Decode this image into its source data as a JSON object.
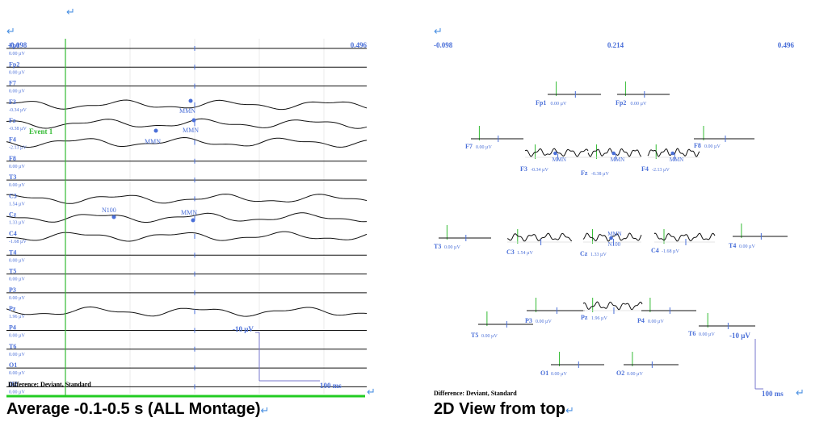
{
  "left_panel": {
    "caption": "Average -0.1-0.5 s (ALL Montage)",
    "x_start": "-0.098",
    "x_end": "0.496",
    "event_label": "Event 1",
    "difference_note": "Difference: Deviant, Standard",
    "scale_bar": {
      "amplitude_label": "-10 µV",
      "time_label": "100 ms"
    }
  },
  "right_panel": {
    "caption": "2D View from top",
    "x_start": "-0.098",
    "x_mid": "0.214",
    "x_end": "0.496",
    "difference_note": "Difference: Deviant, Standard",
    "scale_bar": {
      "amplitude_label": "-10 µV",
      "time_label": "100 ms"
    }
  },
  "marks": {
    "return_symbol": "↵"
  },
  "colors": {
    "event_marker": "#33bb33",
    "label_blue": "#4a6fd8",
    "trace": "#111111",
    "baseline_bottom": "#22cc22"
  },
  "chart_data": [
    {
      "type": "line",
      "title": "Average -0.1-0.5 s (ALL Montage)",
      "x_range": [
        -0.098,
        0.496
      ],
      "x_unit": "s",
      "channels": [
        {
          "name": "Fp1",
          "value": "0.00 µV",
          "flat": true
        },
        {
          "name": "Fp2",
          "value": "0.00 µV",
          "flat": true
        },
        {
          "name": "F7",
          "value": "0.00 µV",
          "flat": true
        },
        {
          "name": "F3",
          "value": "-0.34 µV",
          "flat": false,
          "annotation": "MMN"
        },
        {
          "name": "Fz",
          "value": "-0.38 µV",
          "flat": false,
          "annotation": "MMN"
        },
        {
          "name": "F4",
          "value": "-2.13 µV",
          "flat": false,
          "annotation": "MMN"
        },
        {
          "name": "F8",
          "value": "0.00 µV",
          "flat": true
        },
        {
          "name": "T3",
          "value": "0.00 µV",
          "flat": true
        },
        {
          "name": "C3",
          "value": "1.54 µV",
          "flat": false
        },
        {
          "name": "Cz",
          "value": "1.33 µV",
          "flat": false,
          "annotation": "N100",
          "annotation2": "MMN"
        },
        {
          "name": "C4",
          "value": "-1.68 µV",
          "flat": false
        },
        {
          "name": "T4",
          "value": "0.00 µV",
          "flat": true
        },
        {
          "name": "T5",
          "value": "0.00 µV",
          "flat": true
        },
        {
          "name": "P3",
          "value": "0.00 µV",
          "flat": true
        },
        {
          "name": "Pz",
          "value": "1.96 µV",
          "flat": false
        },
        {
          "name": "P4",
          "value": "0.00 µV",
          "flat": true
        },
        {
          "name": "T6",
          "value": "0.00 µV",
          "flat": true
        },
        {
          "name": "O1",
          "value": "0.00 µV",
          "flat": true
        },
        {
          "name": "O2",
          "value": "0.00 µV",
          "flat": true
        }
      ]
    },
    {
      "type": "line",
      "title": "2D View from top",
      "x_range": [
        -0.098,
        0.496
      ],
      "x_unit": "s",
      "topo_channels": [
        {
          "name": "Fp1",
          "value": "0.00 µV",
          "flat": true
        },
        {
          "name": "Fp2",
          "value": "0.00 µV",
          "flat": true
        },
        {
          "name": "F7",
          "value": "0.00 µV",
          "flat": true
        },
        {
          "name": "F3",
          "value": "-0.34 µV",
          "flat": false,
          "annotation": "MMN"
        },
        {
          "name": "Fz",
          "value": "-0.38 µV",
          "flat": false,
          "annotation": "MMN"
        },
        {
          "name": "F4",
          "value": "-2.13 µV",
          "flat": false,
          "annotation": "MMN"
        },
        {
          "name": "F8",
          "value": "0.00 µV",
          "flat": true
        },
        {
          "name": "T3",
          "value": "0.00 µV",
          "flat": true
        },
        {
          "name": "C3",
          "value": "1.54 µV",
          "flat": false
        },
        {
          "name": "Cz",
          "value": "1.33 µV",
          "flat": false,
          "annotation": "N100",
          "annotation2": "MMN"
        },
        {
          "name": "C4",
          "value": "-1.68 µV",
          "flat": false
        },
        {
          "name": "T4",
          "value": "0.00 µV",
          "flat": true
        },
        {
          "name": "T5",
          "value": "0.00 µV",
          "flat": true
        },
        {
          "name": "P3",
          "value": "0.00 µV",
          "flat": true
        },
        {
          "name": "Pz",
          "value": "1.96 µV",
          "flat": false
        },
        {
          "name": "P4",
          "value": "0.00 µV",
          "flat": true
        },
        {
          "name": "T6",
          "value": "0.00 µV",
          "flat": true
        },
        {
          "name": "O1",
          "value": "0.00 µV",
          "flat": true
        },
        {
          "name": "O2",
          "value": "0.00 µV",
          "flat": true
        }
      ]
    }
  ]
}
